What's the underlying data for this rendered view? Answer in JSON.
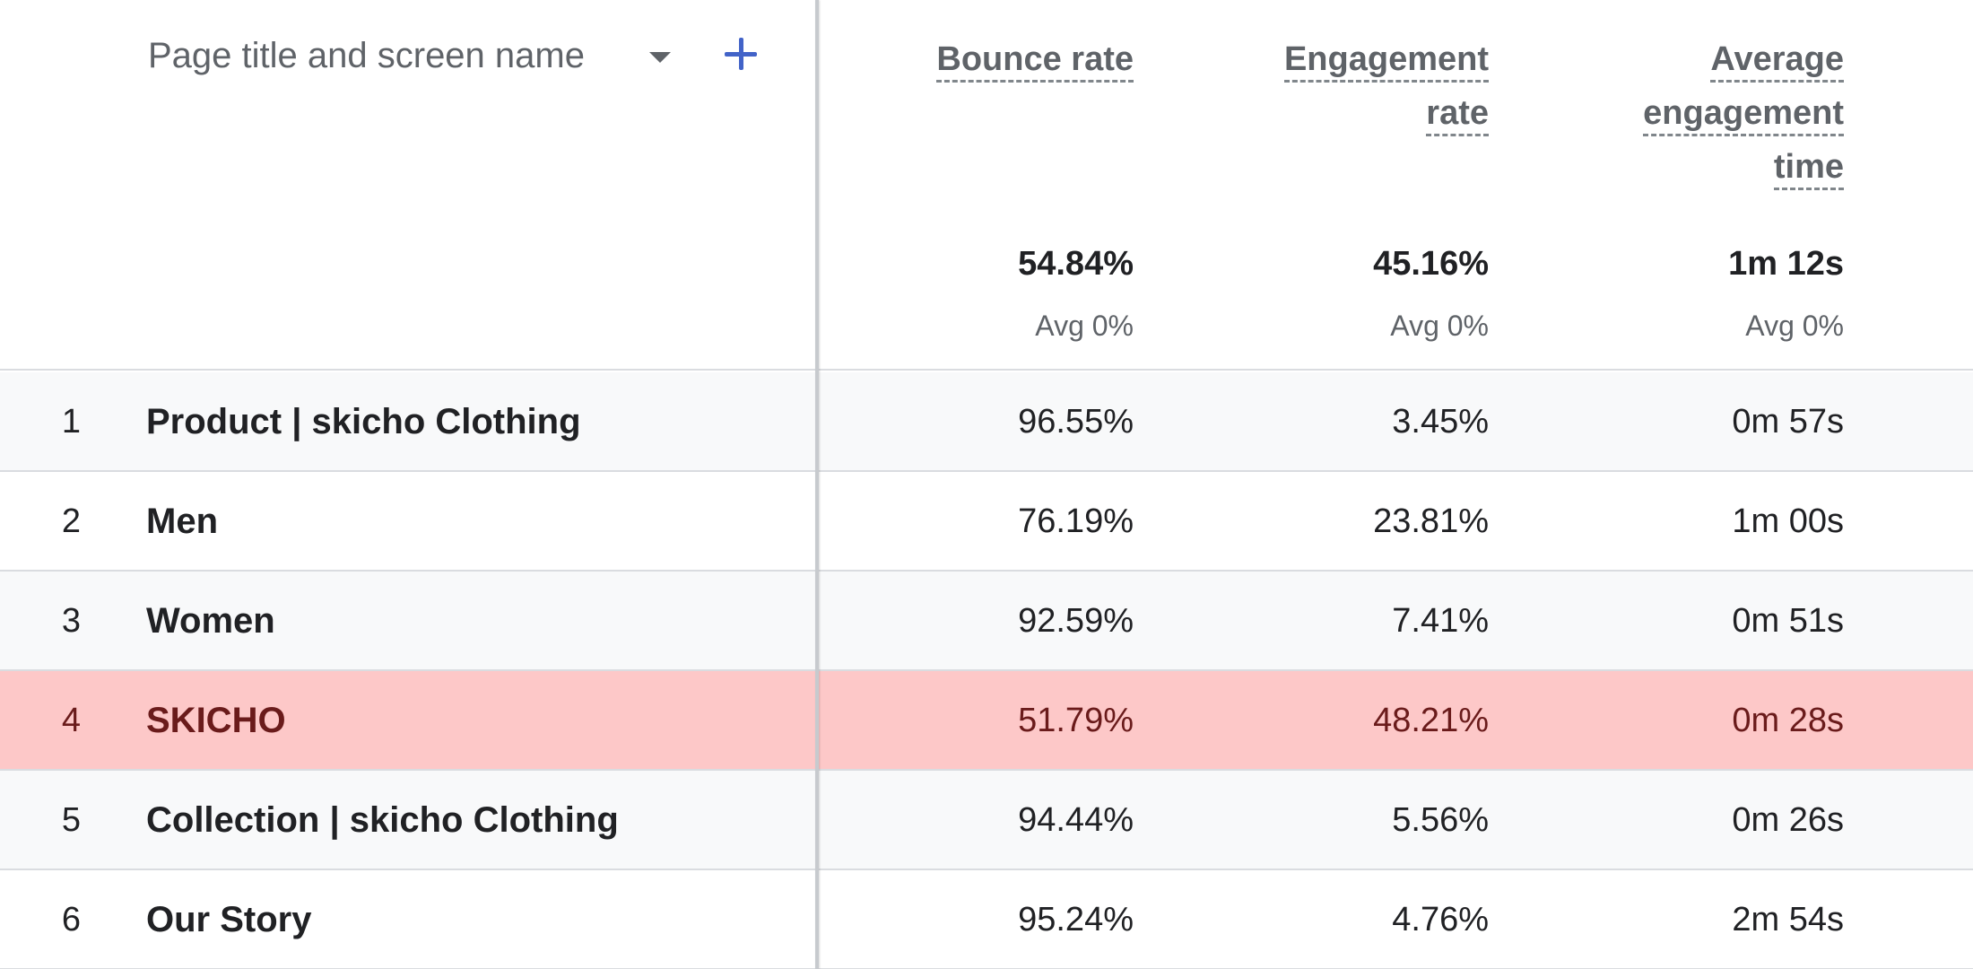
{
  "dimension": {
    "label": "Page title and screen name"
  },
  "metrics": [
    {
      "title_lines": [
        "Bounce rate"
      ],
      "total": "54.84%",
      "avg": "Avg 0%"
    },
    {
      "title_lines": [
        "Engagement",
        "rate"
      ],
      "total": "45.16%",
      "avg": "Avg 0%"
    },
    {
      "title_lines": [
        "Average",
        "engagement",
        "time"
      ],
      "total": "1m 12s",
      "avg": "Avg 0%"
    }
  ],
  "rows": [
    {
      "index": "1",
      "name": "Product | skicho Clothing",
      "bounce": "96.55%",
      "engagement": "3.45%",
      "time": "0m 57s"
    },
    {
      "index": "2",
      "name": "Men",
      "bounce": "76.19%",
      "engagement": "23.81%",
      "time": "1m 00s"
    },
    {
      "index": "3",
      "name": "Women",
      "bounce": "92.59%",
      "engagement": "7.41%",
      "time": "0m 51s"
    },
    {
      "index": "4",
      "name": "SKICHO",
      "bounce": "51.79%",
      "engagement": "48.21%",
      "time": "0m 28s"
    },
    {
      "index": "5",
      "name": "Collection | skicho Clothing",
      "bounce": "94.44%",
      "engagement": "5.56%",
      "time": "0m 26s"
    },
    {
      "index": "6",
      "name": "Our Story",
      "bounce": "95.24%",
      "engagement": "4.76%",
      "time": "2m 54s"
    }
  ],
  "highlight_color": "#fdc8c8",
  "accent_color": "#4263c8"
}
